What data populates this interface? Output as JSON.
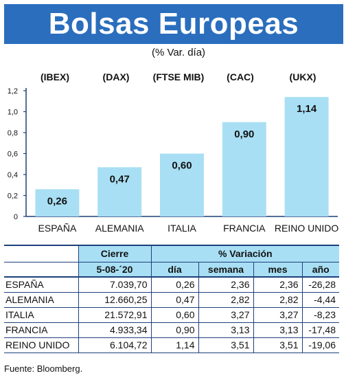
{
  "header": {
    "title": "Bolsas Europeas",
    "subtitle": "(% Var. día)"
  },
  "chart_data": {
    "type": "bar",
    "index_codes": [
      "(IBEX)",
      "(DAX)",
      "(FTSE MIB)",
      "(CAC)",
      "(UKX)"
    ],
    "categories": [
      "ESPAÑA",
      "ALEMANIA",
      "ITALIA",
      "FRANCIA",
      "REINO UNIDO"
    ],
    "values": [
      0.26,
      0.47,
      0.6,
      0.9,
      1.14
    ],
    "value_labels": [
      "0,26",
      "0,47",
      "0,60",
      "0,90",
      "1,14"
    ],
    "yticks": [
      "0",
      "0,2",
      "0,4",
      "0,6",
      "0,8",
      "1,0",
      "1,2"
    ],
    "ylim": [
      0,
      1.2
    ],
    "grid": false,
    "bar_color": "#a9dff4",
    "axis_color": "#1c3f7a"
  },
  "table": {
    "header_cierre": "Cierre",
    "header_date": "5-08-´20",
    "header_variacion": "% Variación",
    "sub_headers": [
      "día",
      "semana",
      "mes",
      "año"
    ],
    "rows": [
      {
        "country": "ESPAÑA",
        "cierre": "7.039,70",
        "dia": "0,26",
        "semana": "2,36",
        "mes": "2,36",
        "anio": "-26,28"
      },
      {
        "country": "ALEMANIA",
        "cierre": "12.660,25",
        "dia": "0,47",
        "semana": "2,82",
        "mes": "2,82",
        "anio": "-4,44"
      },
      {
        "country": "ITALIA",
        "cierre": "21.572,91",
        "dia": "0,60",
        "semana": "3,27",
        "mes": "3,27",
        "anio": "-8,23"
      },
      {
        "country": "FRANCIA",
        "cierre": "4.933,34",
        "dia": "0,90",
        "semana": "3,13",
        "mes": "3,13",
        "anio": "-17,48"
      },
      {
        "country": "REINO UNIDO",
        "cierre": "6.104,72",
        "dia": "1,14",
        "semana": "3,51",
        "mes": "3,51",
        "anio": "-19,06"
      }
    ]
  },
  "footer": {
    "source": "Fuente: Bloomberg."
  },
  "colors": {
    "banner": "#2a6ebd",
    "light_blue": "#a9dff4",
    "navy": "#1c3f7a"
  }
}
